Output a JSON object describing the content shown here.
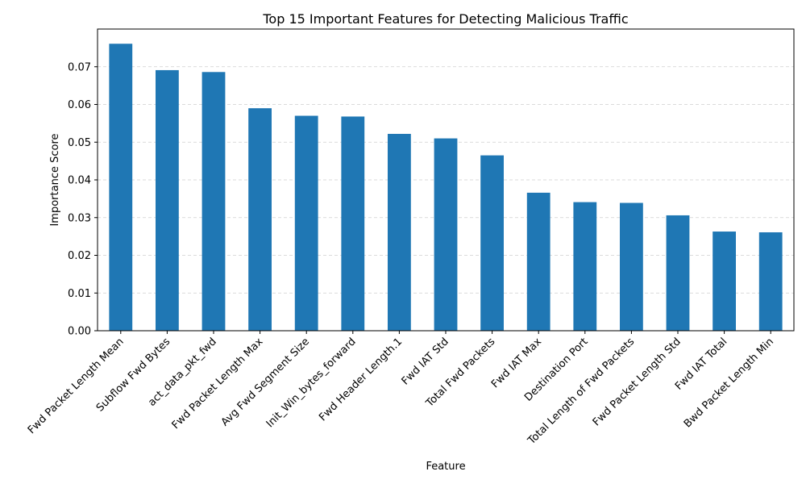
{
  "chart_data": {
    "type": "bar",
    "title": "Top 15 Important Features for Detecting Malicious Traffic",
    "xlabel": "Feature",
    "ylabel": "Importance Score",
    "categories": [
      "Fwd Packet Length Mean",
      "Subflow Fwd Bytes",
      "act_data_pkt_fwd",
      "Fwd Packet Length Max",
      "Avg Fwd Segment Size",
      "Init_Win_bytes_forward",
      "Fwd Header Length.1",
      "Fwd IAT Std",
      "Total Fwd Packets",
      "Fwd IAT Max",
      "Destination Port",
      "Total Length of Fwd Packets",
      "Fwd Packet Length Std",
      "Fwd IAT Total",
      "Bwd Packet Length Min"
    ],
    "values": [
      0.0761,
      0.0691,
      0.0686,
      0.059,
      0.057,
      0.0568,
      0.0522,
      0.051,
      0.0465,
      0.0366,
      0.0341,
      0.0339,
      0.0306,
      0.0263,
      0.0261
    ],
    "ylim": [
      0,
      0.08
    ],
    "yticks": [
      "0.00",
      "0.01",
      "0.02",
      "0.03",
      "0.04",
      "0.05",
      "0.06",
      "0.07"
    ],
    "ytick_values": [
      0,
      0.01,
      0.02,
      0.03,
      0.04,
      0.05,
      0.06,
      0.07
    ],
    "grid": "y-dashed",
    "bar_color": "#1f77b4"
  }
}
